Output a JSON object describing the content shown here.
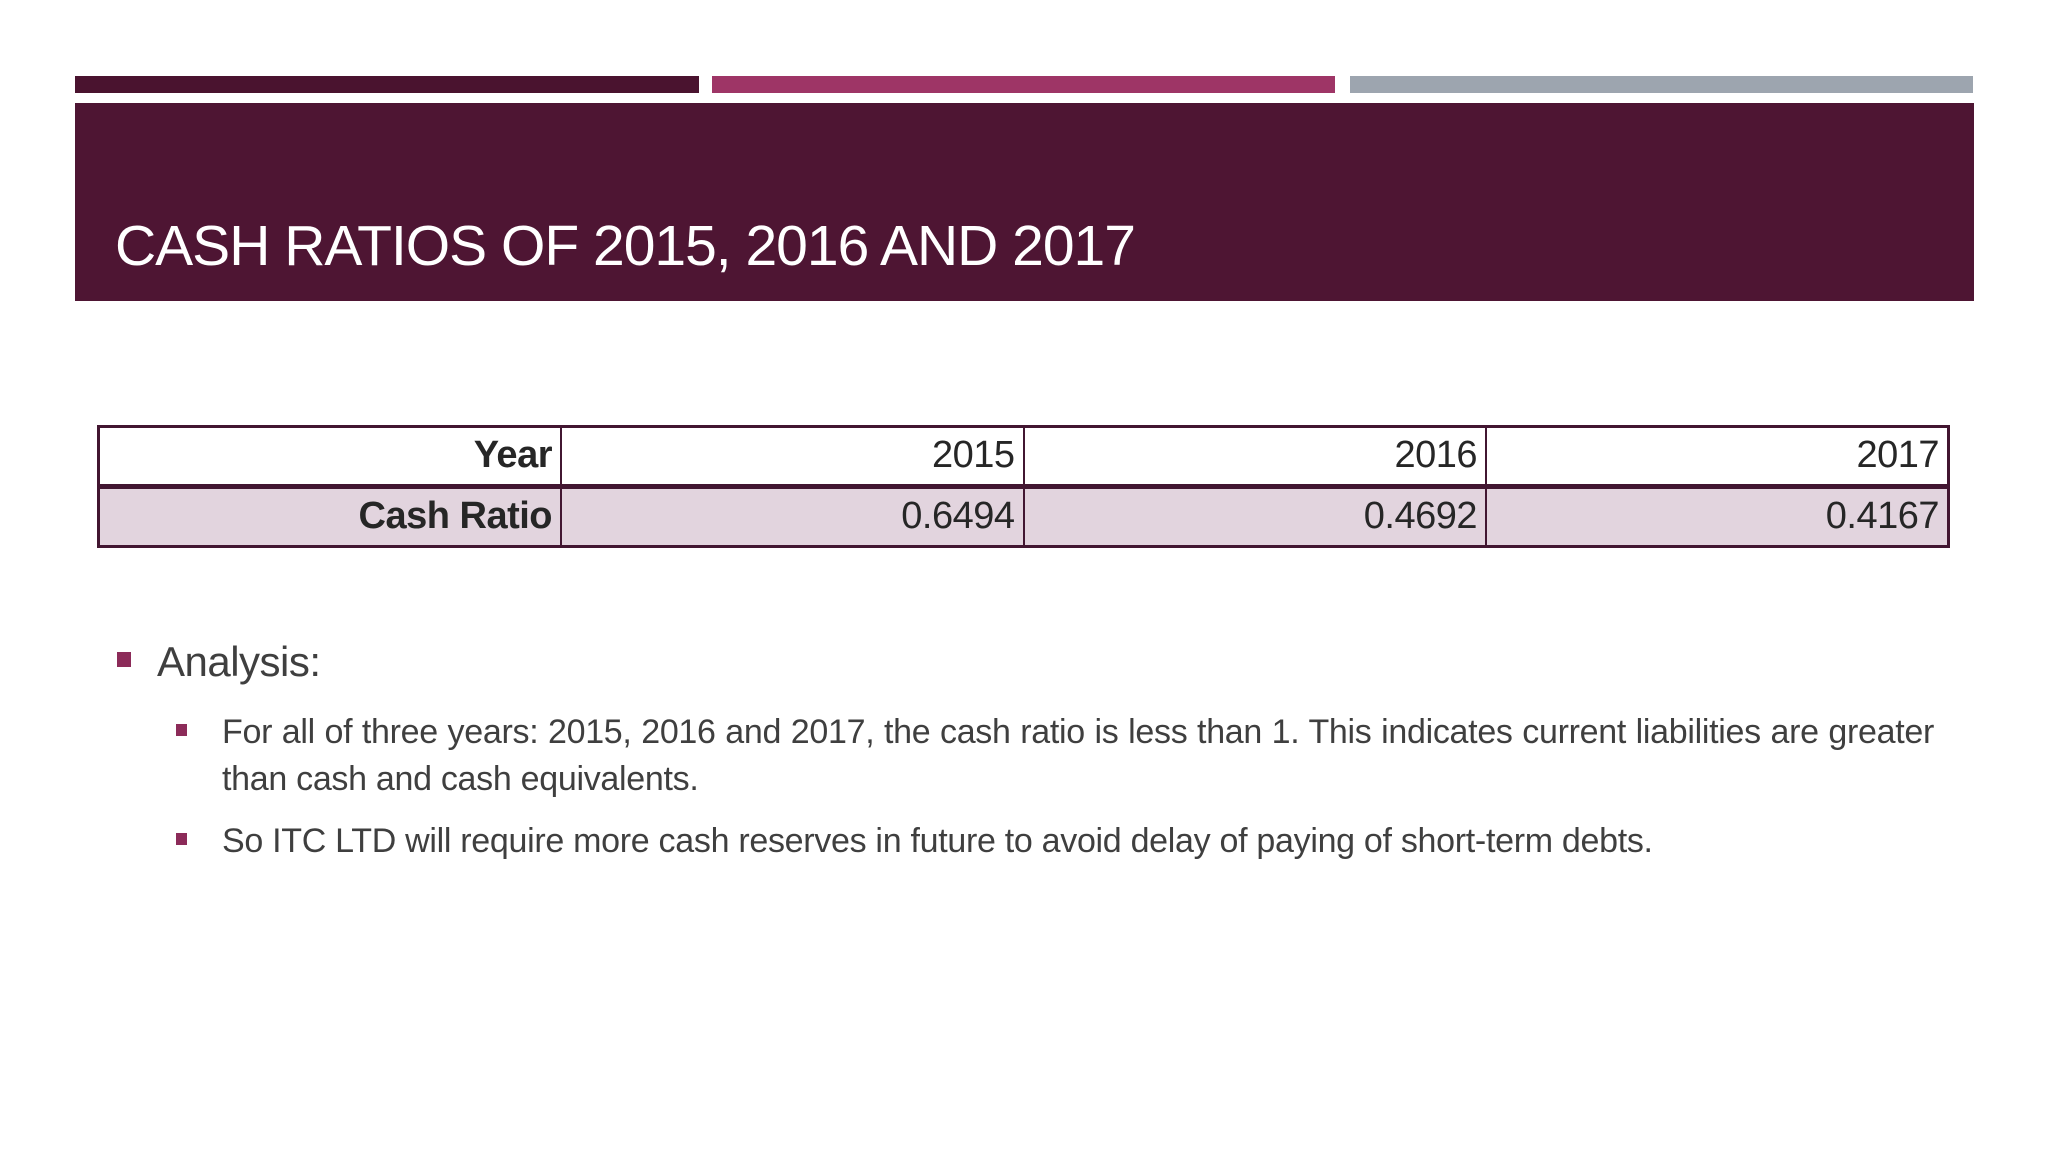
{
  "slide": {
    "title": "CASH RATIOS OF 2015, 2016 AND 2017",
    "banner_color": "#4e1533",
    "accent_bars": [
      {
        "name": "dark-maroon-bar",
        "color": "#4a132f"
      },
      {
        "name": "magenta-bar",
        "color": "#9e3566"
      },
      {
        "name": "gray-bar",
        "color": "#9da5af"
      }
    ]
  },
  "table": {
    "border_color": "#421631",
    "shaded_row_color": "#e2d4de",
    "header_row": {
      "label": "Year",
      "values": [
        "2015",
        "2016",
        "2017"
      ]
    },
    "data_row": {
      "label": "Cash Ratio",
      "values": [
        "0.6494",
        "0.4692",
        "0.4167"
      ]
    }
  },
  "analysis": {
    "bullet_color": "#8c2b59",
    "text_color": "#3f3f3f",
    "heading": "Analysis:",
    "bullets": [
      "For all of three years: 2015, 2016 and 2017, the cash ratio is less than 1. This indicates current liabilities are greater than cash and cash equivalents.",
      "So ITC LTD will require more cash reserves in future to avoid delay of paying of short-term debts."
    ]
  },
  "chart_data": {
    "type": "table",
    "title": "Cash Ratios of 2015, 2016 and 2017",
    "categories": [
      "2015",
      "2016",
      "2017"
    ],
    "series": [
      {
        "name": "Cash Ratio",
        "values": [
          0.6494,
          0.4692,
          0.4167
        ]
      }
    ]
  }
}
